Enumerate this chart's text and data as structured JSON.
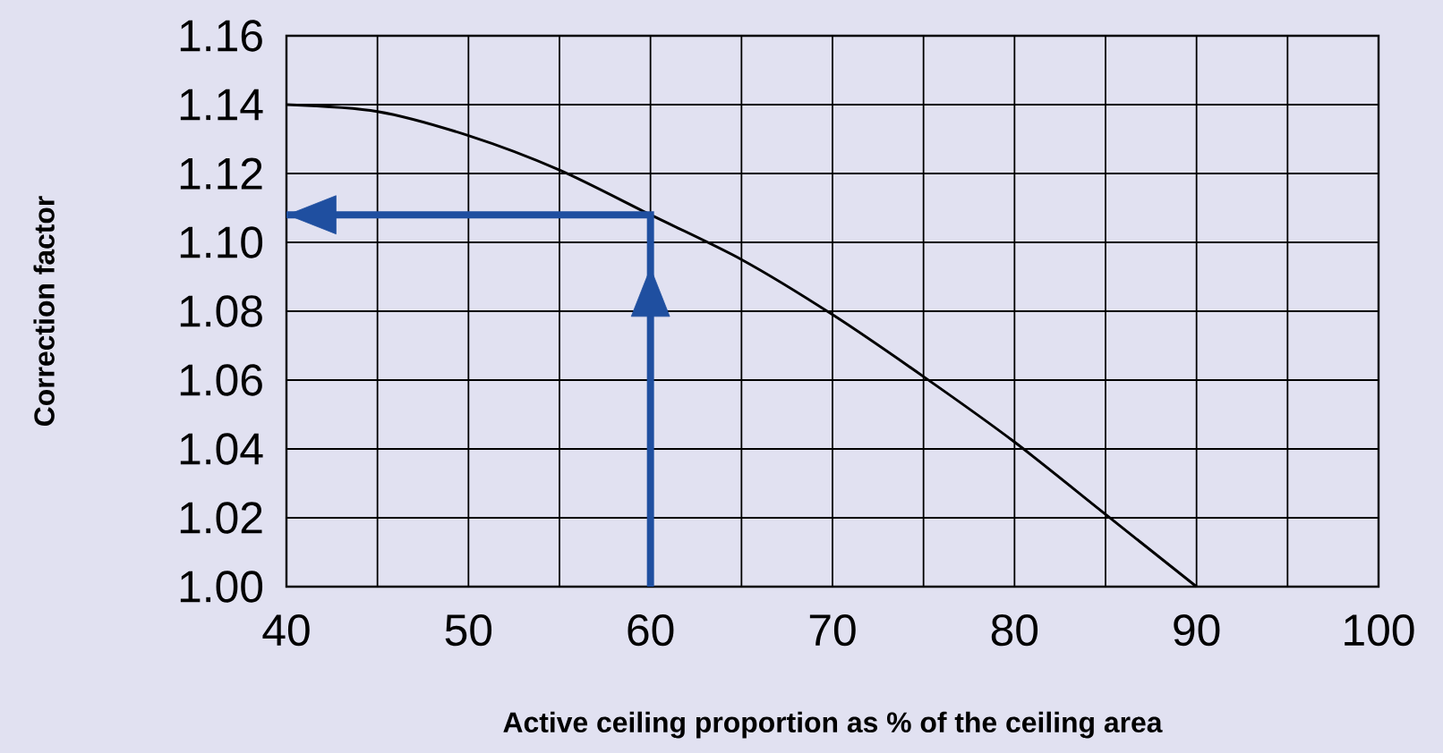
{
  "chart_data": {
    "type": "line",
    "xlabel": "Active ceiling proportion as % of the ceiling area",
    "ylabel": "Correction factor",
    "xlim": [
      40,
      100
    ],
    "ylim": [
      1.0,
      1.16
    ],
    "xticks": [
      40,
      {
        "value": 45,
        "label": null
      },
      50,
      {
        "value": 55,
        "label": null
      },
      60,
      {
        "value": 65,
        "label": null
      },
      70,
      {
        "value": 75,
        "label": null
      },
      80,
      {
        "value": 85,
        "label": null
      },
      90,
      {
        "value": 95,
        "label": null
      },
      100
    ],
    "yticks": [
      {
        "value": 1.0,
        "label": "1.00"
      },
      {
        "value": 1.02,
        "label": "1.02"
      },
      {
        "value": 1.04,
        "label": "1.04"
      },
      {
        "value": 1.06,
        "label": "1.06"
      },
      {
        "value": 1.08,
        "label": "1.08"
      },
      {
        "value": 1.1,
        "label": "1.10"
      },
      {
        "value": 1.12,
        "label": "1.12"
      },
      {
        "value": 1.14,
        "label": "1.14"
      },
      {
        "value": 1.16,
        "label": "1.16"
      }
    ],
    "grid": true,
    "series": [
      {
        "color": "#000000",
        "x": [
          40,
          45,
          50,
          55,
          60,
          65,
          70,
          75,
          80,
          85,
          90
        ],
        "values": [
          1.14,
          1.138,
          1.131,
          1.121,
          1.108,
          1.095,
          1.079,
          1.061,
          1.042,
          1.021,
          1.0
        ]
      },
      {
        "color": "#1f4fa0",
        "x": [
          60,
          60,
          40
        ],
        "values": [
          1.0,
          1.108,
          1.108
        ]
      }
    ]
  }
}
